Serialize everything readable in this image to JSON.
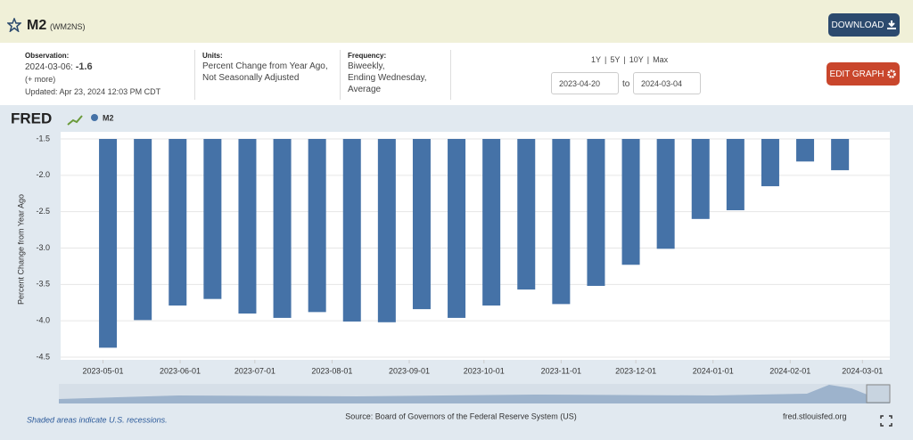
{
  "header": {
    "title": "M2",
    "series_id": "(WM2NS)",
    "download": "DOWNLOAD"
  },
  "info": {
    "observation_label": "Observation:",
    "observation_date": "2024-03-06:",
    "observation_value": -1.6,
    "more": "(+ more)",
    "updated": "Updated: Apr 23, 2024 12:03 PM CDT",
    "units_label": "Units:",
    "units": [
      "Percent Change from Year Ago,",
      "Not Seasonally Adjusted"
    ],
    "frequency_label": "Frequency:",
    "frequency": [
      "Biweekly,",
      "Ending Wednesday,",
      "Average"
    ]
  },
  "controls": {
    "ranges": [
      "1Y",
      "5Y",
      "10Y",
      "Max"
    ],
    "separator": "|",
    "start": "2023-04-20",
    "to": "to",
    "end": "2024-03-04",
    "edit": "EDIT GRAPH"
  },
  "chart_data": {
    "type": "bar",
    "logo": "FRED",
    "ylabel": "Percent Change from Year Ago",
    "x": [
      "2023-05-03",
      "2023-05-17",
      "2023-05-31",
      "2023-06-14",
      "2023-06-28",
      "2023-07-12",
      "2023-07-26",
      "2023-08-09",
      "2023-08-23",
      "2023-09-06",
      "2023-09-20",
      "2023-10-04",
      "2023-10-18",
      "2023-11-01",
      "2023-11-15",
      "2023-11-29",
      "2023-12-13",
      "2023-12-27",
      "2024-01-10",
      "2024-01-24",
      "2024-02-07",
      "2024-02-21"
    ],
    "series": [
      {
        "name": "M2",
        "color": "#4572a7",
        "values": [
          -4.37,
          -3.99,
          -3.79,
          -3.7,
          -3.9,
          -3.96,
          -3.88,
          -4.01,
          -4.02,
          -3.84,
          -3.96,
          -3.79,
          -3.57,
          -3.77,
          -3.52,
          -3.23,
          -3.01,
          -2.6,
          -2.48,
          -2.15,
          -1.81,
          -1.93
        ]
      }
    ],
    "xlim": [
      "2023-04-14",
      "2024-03-12"
    ],
    "xticks": [
      "2023-05-01",
      "2023-06-01",
      "2023-07-01",
      "2023-08-01",
      "2023-09-01",
      "2023-10-01",
      "2023-11-01",
      "2023-12-01",
      "2024-01-01",
      "2024-02-01",
      "2024-03-01"
    ],
    "ylim": [
      -4.5,
      -1.5
    ],
    "yticks": [
      -1.5,
      {
        "value": -2.0,
        "label": "-2.0"
      },
      -2.5,
      {
        "value": -3.0,
        "label": "-3.0"
      },
      -3.5,
      {
        "value": -4.0,
        "label": "-4.0"
      },
      -4.5
    ],
    "grid": true
  },
  "footer": {
    "recessions": "Shaded areas indicate U.S. recessions.",
    "source": "Source: Board of Governors of the Federal Reserve System (US)",
    "site": "fred.stlouisfed.org"
  }
}
